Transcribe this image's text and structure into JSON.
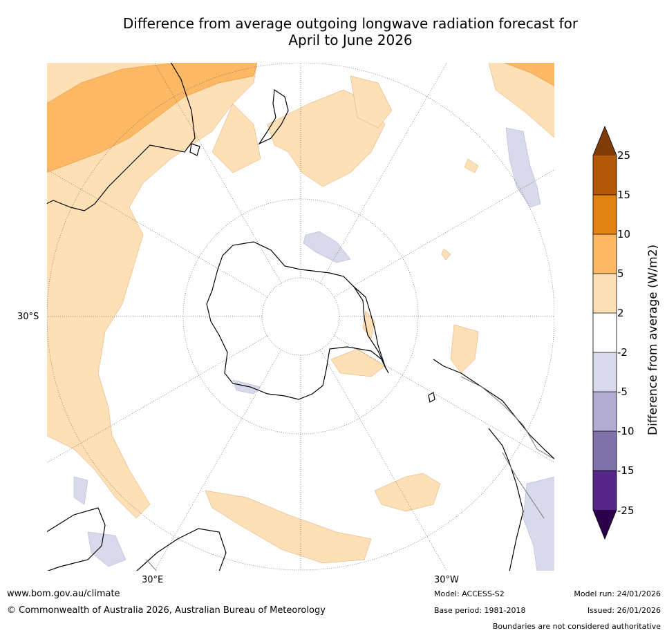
{
  "title_line1": "Difference from average outgoing longwave radiation forecast for",
  "title_line2": "April to June 2026",
  "map": {
    "projection": "south-polar-stereographic",
    "labels": {
      "lat_left": "30°S",
      "lon_bottom_left": "30°E",
      "lon_bottom_right": "30°W"
    }
  },
  "colorbar": {
    "title": "Difference from average (W/m2)",
    "ticks": [
      "25",
      "15",
      "10",
      "5",
      "2",
      "-2",
      "-5",
      "-10",
      "-15",
      "-25"
    ],
    "colors": {
      "over": "#7f3b08",
      "c15_25": "#b35806",
      "c10_15": "#e08214",
      "c5_10": "#fdb863",
      "c2_5": "#fee0b6",
      "cm2_2": "#ffffff",
      "cm5_m2": "#d8daeb",
      "cm10_m5": "#b2abd2",
      "cm15_m10": "#8073ac",
      "cm25_m15": "#542788",
      "under": "#2d004b"
    }
  },
  "footer": {
    "url": "www.bom.gov.au/climate",
    "copyright": "© Commonwealth of Australia 2026, Australian Bureau of Meteorology",
    "model": "Model: ACCESS-S2",
    "base_period": "Base period: 1981-2018",
    "model_run": "Model run: 24/01/2026",
    "issued": "Issued: 26/01/2026",
    "disclaimer": "Boundaries are not considered authoritative"
  }
}
